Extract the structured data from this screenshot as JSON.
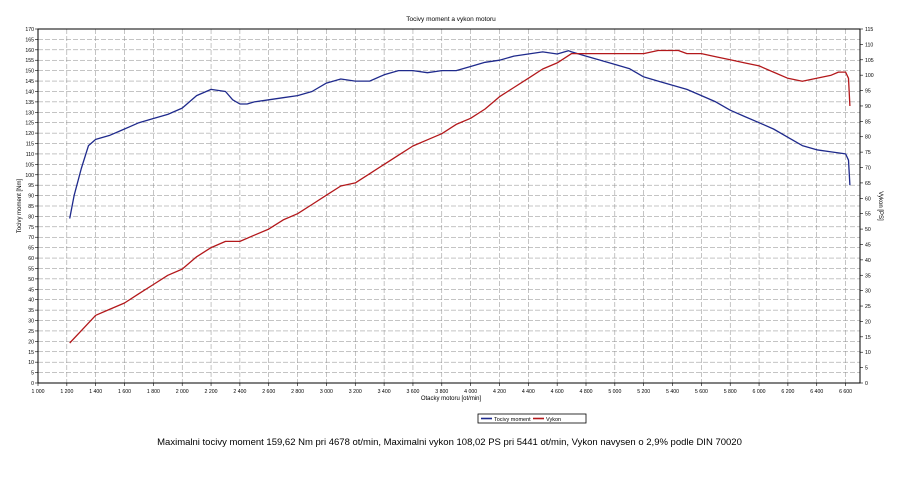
{
  "chart_data": {
    "type": "line",
    "title": "Tocivy moment a vykon motoru",
    "xlabel": "Otacky motoru [ot/min]",
    "ylabel_left": "Tocivy moment [Nm]",
    "ylabel_right": "Vykon [PS]",
    "xlim": [
      1000,
      6700
    ],
    "ylim_left": [
      0,
      170
    ],
    "ylim_right": [
      0,
      115
    ],
    "x_ticks": [
      "1 000",
      "1 200",
      "1 400",
      "1 600",
      "1 800",
      "2 000",
      "2 200",
      "2 400",
      "2 600",
      "2 800",
      "3 000",
      "3 200",
      "3 400",
      "3 600",
      "3 800",
      "4 000",
      "4 200",
      "4 400",
      "4 600",
      "4 800",
      "5 000",
      "5 200",
      "5 400",
      "5 600",
      "5 800",
      "6 000",
      "6 200",
      "6 400",
      "6 600"
    ],
    "y_left_step": 5,
    "y_right_step": 5,
    "grid": true,
    "legend_placement": "bottom-center",
    "series": [
      {
        "name": "Tocivy moment",
        "axis": "left",
        "color": "#1f2a8c",
        "x": [
          1220,
          1250,
          1300,
          1350,
          1400,
          1500,
          1600,
          1700,
          1800,
          1900,
          2000,
          2100,
          2200,
          2300,
          2350,
          2400,
          2450,
          2500,
          2600,
          2700,
          2800,
          2900,
          3000,
          3100,
          3200,
          3300,
          3400,
          3500,
          3600,
          3700,
          3800,
          3900,
          4000,
          4100,
          4200,
          4300,
          4400,
          4500,
          4600,
          4678,
          4700,
          4800,
          4900,
          5000,
          5100,
          5200,
          5300,
          5400,
          5500,
          5600,
          5700,
          5800,
          5900,
          6000,
          6100,
          6200,
          6300,
          6400,
          6500,
          6600,
          6620,
          6630
        ],
        "y": [
          79,
          90,
          103,
          114,
          117,
          119,
          122,
          125,
          127,
          129,
          132,
          138,
          141,
          140,
          136,
          134,
          134,
          135,
          136,
          137,
          138,
          140,
          144,
          146,
          145,
          145,
          148,
          150,
          150,
          149,
          150,
          150,
          152,
          154,
          155,
          157,
          158,
          159,
          158,
          159.6,
          159,
          157,
          155,
          153,
          151,
          147,
          145,
          143,
          141,
          138,
          135,
          131,
          128,
          125,
          122,
          118,
          114,
          112,
          111,
          110,
          107,
          95
        ]
      },
      {
        "name": "Vykon",
        "axis": "right",
        "color": "#b3181b",
        "x": [
          1220,
          1300,
          1400,
          1500,
          1600,
          1700,
          1800,
          1900,
          2000,
          2100,
          2200,
          2300,
          2400,
          2500,
          2600,
          2700,
          2800,
          2900,
          3000,
          3100,
          3200,
          3300,
          3400,
          3500,
          3600,
          3700,
          3800,
          3900,
          4000,
          4100,
          4200,
          4300,
          4400,
          4500,
          4600,
          4700,
          4800,
          4900,
          5000,
          5100,
          5200,
          5300,
          5400,
          5441,
          5500,
          5600,
          5700,
          5800,
          5900,
          6000,
          6100,
          6200,
          6300,
          6400,
          6500,
          6550,
          6600,
          6620,
          6630
        ],
        "y": [
          13,
          17,
          22,
          24,
          26,
          29,
          32,
          35,
          37,
          41,
          44,
          46,
          46,
          48,
          50,
          53,
          55,
          58,
          61,
          64,
          65,
          68,
          71,
          74,
          77,
          79,
          81,
          84,
          86,
          89,
          93,
          96,
          99,
          102,
          104,
          107,
          107,
          107,
          107,
          107,
          107,
          108,
          108,
          108.02,
          107,
          107,
          106,
          105,
          104,
          103,
          101,
          99,
          98,
          99,
          100,
          101,
          101,
          99,
          90
        ]
      }
    ]
  },
  "footer": {
    "text": "Maximalni tocivy moment 159,62 Nm pri 4678 ot/min,  Maximalni vykon 108,02 PS pri 5441 ot/min,  Vykon navysen o 2,9% podle DIN 70020"
  }
}
